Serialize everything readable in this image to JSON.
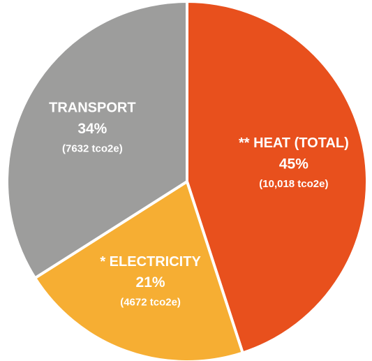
{
  "chart_data": {
    "type": "pie",
    "categories": [
      "** HEAT (TOTAL)",
      "* ELECTRICITY",
      "TRANSPORT"
    ],
    "values": [
      45,
      21,
      34
    ],
    "value_labels": [
      "45%",
      "21%",
      "34%"
    ],
    "emissions": [
      10018,
      4672,
      7632
    ],
    "emission_labels": [
      "(10,018 tco2e)",
      "(4672 tco2e)",
      "(7632 tco2e)"
    ],
    "colors": [
      "#e8501d",
      "#f6ae33",
      "#9d9d9c"
    ]
  }
}
